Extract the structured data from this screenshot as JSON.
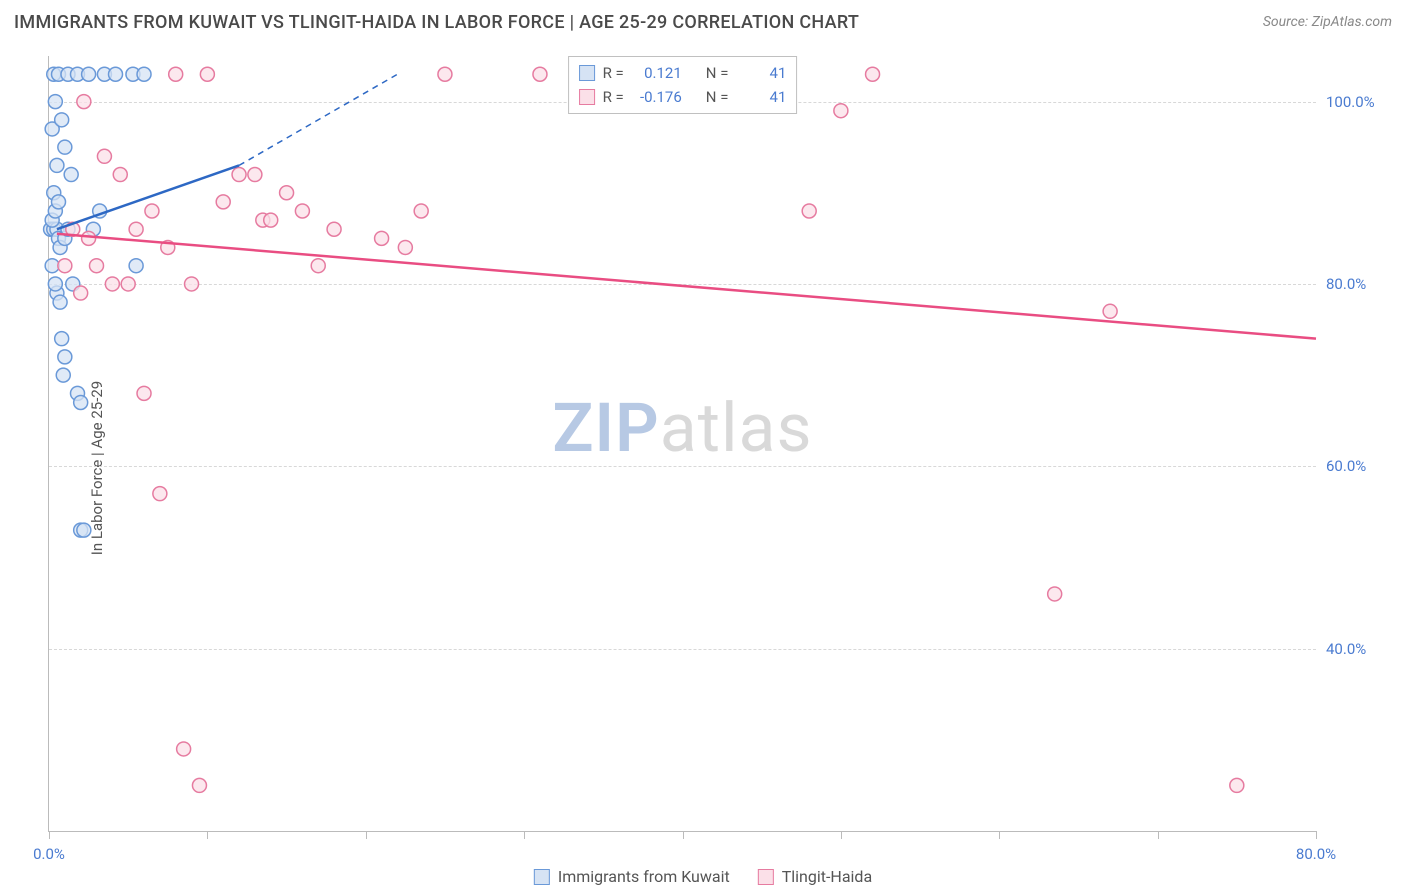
{
  "header": {
    "title": "IMMIGRANTS FROM KUWAIT VS TLINGIT-HAIDA IN LABOR FORCE | AGE 25-29 CORRELATION CHART",
    "source_label": "Source: ZipAtlas.com"
  },
  "chart": {
    "type": "scatter",
    "ylabel": "In Labor Force | Age 25-29",
    "xlim": [
      0,
      80
    ],
    "ylim": [
      20,
      105
    ],
    "xtick_positions": [
      0,
      10,
      20,
      30,
      40,
      50,
      60,
      70,
      80
    ],
    "xtick_labels": {
      "0": "0.0%",
      "80": "80.0%"
    },
    "ytick_positions": [
      40,
      60,
      80,
      100
    ],
    "ytick_labels": {
      "40": "40.0%",
      "60": "60.0%",
      "80": "80.0%",
      "100": "100.0%"
    },
    "background_color": "#ffffff",
    "grid_color": "#d8d8d8",
    "axis_color": "#bbbbbb",
    "tick_label_color": "#4a7bd0",
    "label_fontsize": 15,
    "title_fontsize": 18,
    "marker_radius": 7,
    "marker_stroke_width": 1.5,
    "series": [
      {
        "name": "Immigrants from Kuwait",
        "marker_fill": "#d6e3f4",
        "marker_stroke": "#6a99d8",
        "line_color": "#2d68c4",
        "line_width": 2.5,
        "r_value": "0.121",
        "n_value": "41",
        "points": [
          [
            0.1,
            86
          ],
          [
            0.3,
            86
          ],
          [
            0.5,
            86
          ],
          [
            0.2,
            87
          ],
          [
            0.6,
            85
          ],
          [
            0.4,
            88
          ],
          [
            0.3,
            90
          ],
          [
            0.7,
            84
          ],
          [
            0.5,
            93
          ],
          [
            0.2,
            97
          ],
          [
            1.0,
            85
          ],
          [
            1.2,
            86
          ],
          [
            1.5,
            80
          ],
          [
            0.5,
            79
          ],
          [
            0.7,
            78
          ],
          [
            0.8,
            74
          ],
          [
            1.0,
            72
          ],
          [
            0.9,
            70
          ],
          [
            1.8,
            68
          ],
          [
            2.0,
            67
          ],
          [
            2.0,
            53
          ],
          [
            2.2,
            53
          ],
          [
            0.3,
            103
          ],
          [
            0.6,
            103
          ],
          [
            1.2,
            103
          ],
          [
            1.8,
            103
          ],
          [
            2.5,
            103
          ],
          [
            3.5,
            103
          ],
          [
            4.2,
            103
          ],
          [
            5.3,
            103
          ],
          [
            6.0,
            103
          ],
          [
            0.4,
            100
          ],
          [
            0.8,
            98
          ],
          [
            1.0,
            95
          ],
          [
            1.4,
            92
          ],
          [
            0.6,
            89
          ],
          [
            5.5,
            82
          ],
          [
            2.8,
            86
          ],
          [
            3.2,
            88
          ],
          [
            0.2,
            82
          ],
          [
            0.4,
            80
          ]
        ],
        "trend_solid": [
          [
            0.5,
            86
          ],
          [
            12,
            93
          ]
        ],
        "trend_dashed": [
          [
            12,
            93
          ],
          [
            22,
            103
          ]
        ]
      },
      {
        "name": "Tlingit-Haida",
        "marker_fill": "#fbe0e8",
        "marker_stroke": "#e67ba0",
        "line_color": "#e94d82",
        "line_width": 2.5,
        "r_value": "-0.176",
        "n_value": "41",
        "points": [
          [
            1.5,
            86
          ],
          [
            2.5,
            85
          ],
          [
            3.0,
            82
          ],
          [
            4.5,
            92
          ],
          [
            5.0,
            80
          ],
          [
            6.0,
            68
          ],
          [
            7.5,
            84
          ],
          [
            8.0,
            103
          ],
          [
            9.0,
            80
          ],
          [
            10.0,
            103
          ],
          [
            11.0,
            89
          ],
          [
            12.0,
            92
          ],
          [
            13.0,
            92
          ],
          [
            13.5,
            87
          ],
          [
            14.0,
            87
          ],
          [
            15.0,
            90
          ],
          [
            17.0,
            82
          ],
          [
            21.0,
            85
          ],
          [
            22.5,
            84
          ],
          [
            23.5,
            88
          ],
          [
            25.0,
            103
          ],
          [
            31.0,
            103
          ],
          [
            34.0,
            103
          ],
          [
            48.0,
            88
          ],
          [
            50.0,
            99
          ],
          [
            52.0,
            103
          ],
          [
            63.5,
            46
          ],
          [
            67.0,
            77
          ],
          [
            75.0,
            25
          ],
          [
            7.0,
            57
          ],
          [
            8.5,
            29
          ],
          [
            9.5,
            25
          ],
          [
            3.5,
            94
          ],
          [
            4.0,
            80
          ],
          [
            5.5,
            86
          ],
          [
            16.0,
            88
          ],
          [
            18.0,
            86
          ],
          [
            1.0,
            82
          ],
          [
            2.0,
            79
          ],
          [
            6.5,
            88
          ],
          [
            2.2,
            100
          ]
        ],
        "trend_solid": [
          [
            0.5,
            85.5
          ],
          [
            80,
            74
          ]
        ],
        "trend_dashed": null
      }
    ],
    "legend_top": {
      "r_label": "R =",
      "n_label": "N ="
    },
    "legend_bottom_labels": [
      "Immigrants from Kuwait",
      "Tlingit-Haida"
    ],
    "watermark": {
      "prefix": "ZIP",
      "suffix": "atlas"
    }
  }
}
